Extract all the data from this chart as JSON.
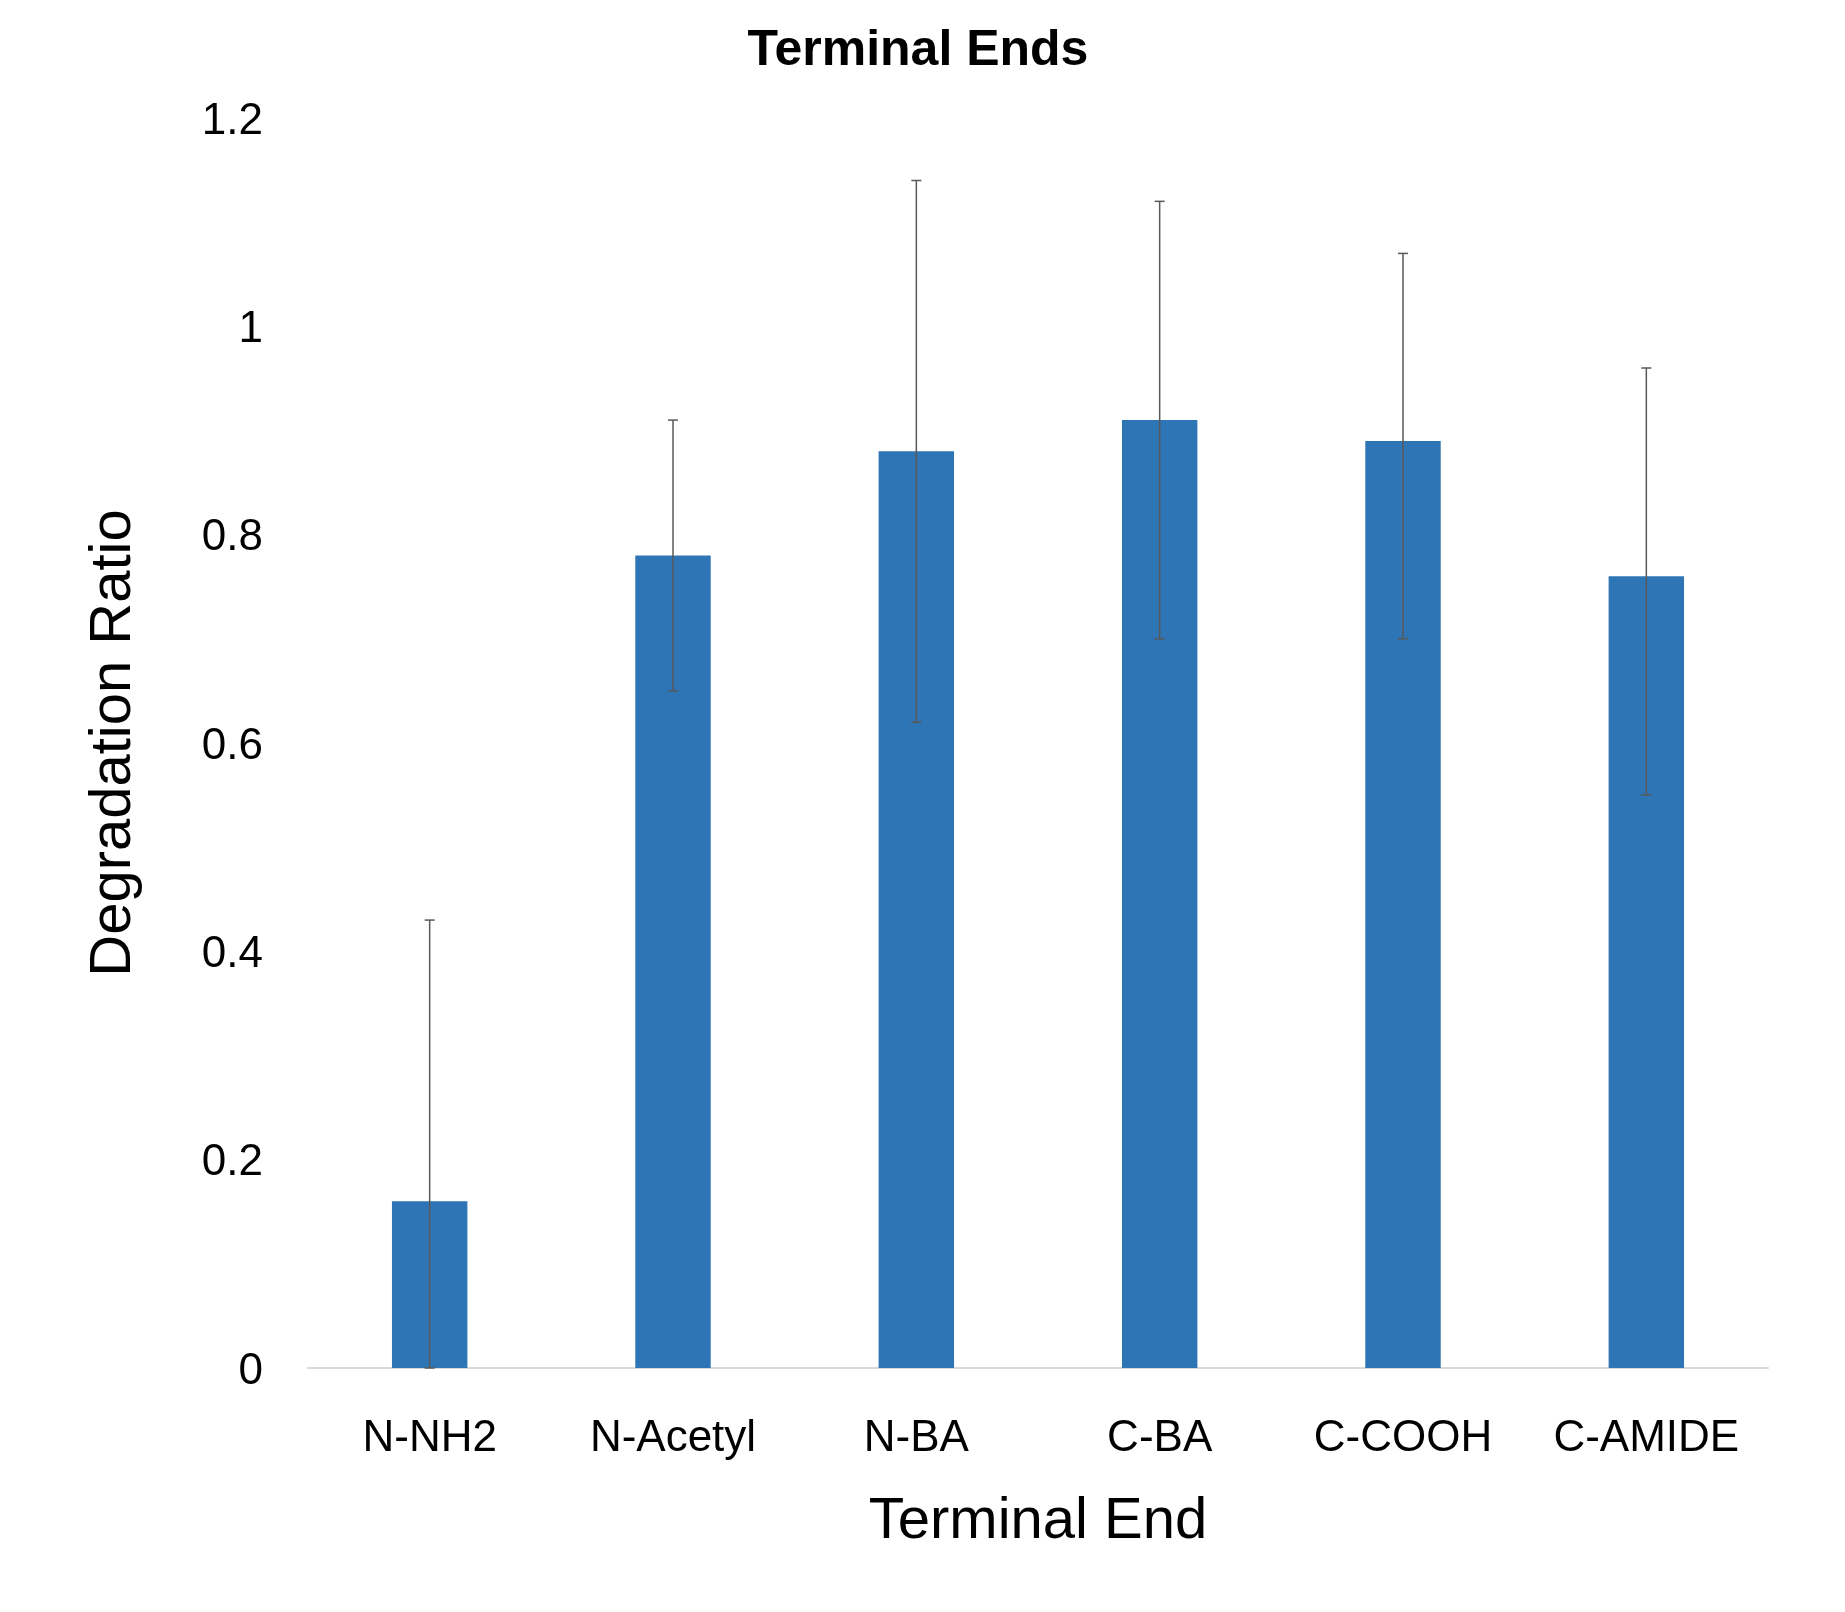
{
  "chart_data": {
    "type": "bar",
    "title": "Terminal Ends",
    "xlabel": "Terminal End",
    "ylabel": "Degradation Ratio",
    "categories": [
      "N-NH2",
      "N-Acetyl",
      "N-BA",
      "C-BA",
      "C-COOH",
      "C-AMIDE"
    ],
    "values": [
      0.16,
      0.78,
      0.88,
      0.91,
      0.89,
      0.76
    ],
    "errors": [
      [
        0,
        0.43
      ],
      [
        0.65,
        0.91
      ],
      [
        0.62,
        1.14
      ],
      [
        0.7,
        1.12
      ],
      [
        0.7,
        1.07
      ],
      [
        0.55,
        0.96
      ]
    ],
    "color": "#2e75b6",
    "ylim": [
      0,
      1.2
    ],
    "yticks": [
      0,
      0.2,
      0.4,
      0.6,
      0.8,
      1,
      1.2
    ],
    "grid": false
  }
}
